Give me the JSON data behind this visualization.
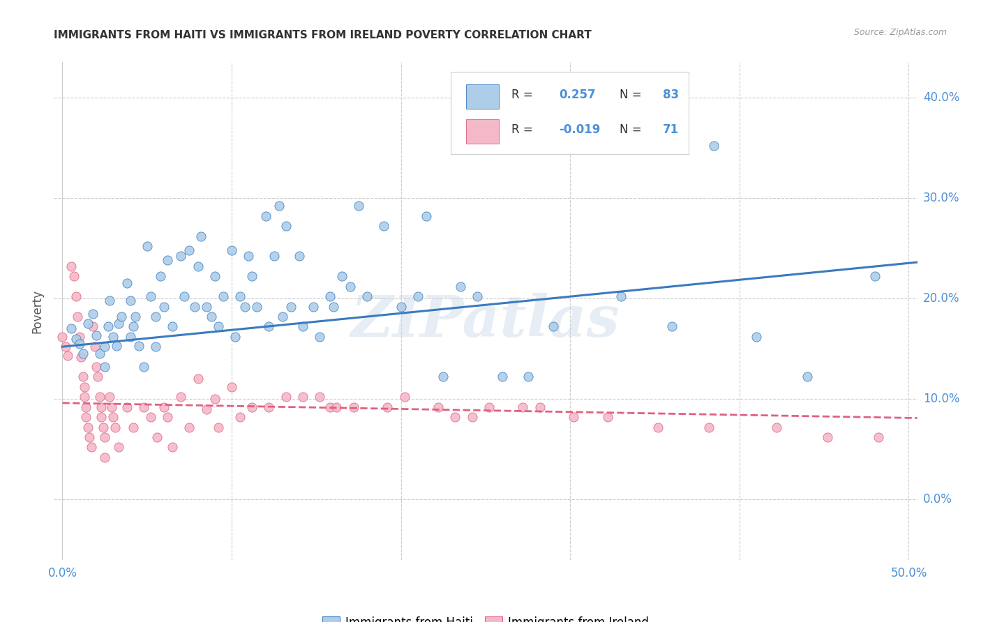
{
  "title": "IMMIGRANTS FROM HAITI VS IMMIGRANTS FROM IRELAND POVERTY CORRELATION CHART",
  "source": "Source: ZipAtlas.com",
  "ylabel": "Poverty",
  "xlim": [
    -0.005,
    0.505
  ],
  "ylim": [
    -0.06,
    0.435
  ],
  "xticks": [
    0.0,
    0.1,
    0.2,
    0.3,
    0.4,
    0.5
  ],
  "yticks": [
    0.0,
    0.1,
    0.2,
    0.3,
    0.4
  ],
  "xticklabels": [
    "0.0%",
    "",
    "",
    "",
    "",
    "50.0%"
  ],
  "yticklabels_right": [
    "0.0%",
    "10.0%",
    "20.0%",
    "30.0%",
    "40.0%"
  ],
  "haiti_color": "#aecde8",
  "ireland_color": "#f4b8c8",
  "haiti_line_color": "#3a7bbf",
  "ireland_line_color": "#e06080",
  "haiti_R": "0.257",
  "haiti_N": "83",
  "ireland_R": "-0.019",
  "ireland_N": "71",
  "haiti_line_x": [
    0.0,
    0.505
  ],
  "haiti_line_y": [
    0.152,
    0.236
  ],
  "ireland_line_x": [
    0.0,
    0.505
  ],
  "ireland_line_y": [
    0.096,
    0.081
  ],
  "haiti_x": [
    0.005,
    0.008,
    0.01,
    0.012,
    0.015,
    0.018,
    0.02,
    0.022,
    0.025,
    0.025,
    0.027,
    0.028,
    0.03,
    0.032,
    0.033,
    0.035,
    0.038,
    0.04,
    0.04,
    0.042,
    0.043,
    0.045,
    0.048,
    0.05,
    0.052,
    0.055,
    0.055,
    0.058,
    0.06,
    0.062,
    0.065,
    0.07,
    0.072,
    0.075,
    0.078,
    0.08,
    0.082,
    0.085,
    0.088,
    0.09,
    0.092,
    0.095,
    0.1,
    0.102,
    0.105,
    0.108,
    0.11,
    0.112,
    0.115,
    0.12,
    0.122,
    0.125,
    0.128,
    0.13,
    0.132,
    0.135,
    0.14,
    0.142,
    0.148,
    0.152,
    0.158,
    0.16,
    0.165,
    0.17,
    0.175,
    0.18,
    0.19,
    0.2,
    0.21,
    0.215,
    0.225,
    0.235,
    0.245,
    0.26,
    0.275,
    0.29,
    0.31,
    0.33,
    0.36,
    0.385,
    0.41,
    0.44,
    0.48
  ],
  "haiti_y": [
    0.17,
    0.16,
    0.155,
    0.145,
    0.175,
    0.185,
    0.163,
    0.145,
    0.132,
    0.152,
    0.172,
    0.198,
    0.162,
    0.153,
    0.175,
    0.182,
    0.215,
    0.198,
    0.162,
    0.172,
    0.182,
    0.153,
    0.132,
    0.252,
    0.202,
    0.182,
    0.152,
    0.222,
    0.192,
    0.238,
    0.172,
    0.242,
    0.202,
    0.248,
    0.192,
    0.232,
    0.262,
    0.192,
    0.182,
    0.222,
    0.172,
    0.202,
    0.248,
    0.162,
    0.202,
    0.192,
    0.242,
    0.222,
    0.192,
    0.282,
    0.172,
    0.242,
    0.292,
    0.182,
    0.272,
    0.192,
    0.242,
    0.172,
    0.192,
    0.162,
    0.202,
    0.192,
    0.222,
    0.212,
    0.292,
    0.202,
    0.272,
    0.192,
    0.202,
    0.282,
    0.122,
    0.212,
    0.202,
    0.122,
    0.122,
    0.172,
    0.362,
    0.202,
    0.172,
    0.352,
    0.162,
    0.122,
    0.222
  ],
  "ireland_x": [
    0.0,
    0.002,
    0.003,
    0.005,
    0.007,
    0.008,
    0.009,
    0.01,
    0.011,
    0.012,
    0.013,
    0.013,
    0.014,
    0.014,
    0.015,
    0.016,
    0.017,
    0.018,
    0.019,
    0.02,
    0.021,
    0.022,
    0.023,
    0.023,
    0.024,
    0.025,
    0.025,
    0.028,
    0.029,
    0.03,
    0.031,
    0.033,
    0.038,
    0.042,
    0.048,
    0.052,
    0.056,
    0.06,
    0.062,
    0.065,
    0.07,
    0.075,
    0.08,
    0.085,
    0.09,
    0.092,
    0.1,
    0.105,
    0.112,
    0.122,
    0.132,
    0.142,
    0.152,
    0.158,
    0.162,
    0.172,
    0.192,
    0.202,
    0.222,
    0.232,
    0.242,
    0.252,
    0.272,
    0.282,
    0.302,
    0.322,
    0.352,
    0.382,
    0.422,
    0.452,
    0.482
  ],
  "ireland_y": [
    0.162,
    0.152,
    0.143,
    0.232,
    0.222,
    0.202,
    0.182,
    0.162,
    0.142,
    0.122,
    0.112,
    0.102,
    0.092,
    0.082,
    0.072,
    0.062,
    0.052,
    0.172,
    0.152,
    0.132,
    0.122,
    0.102,
    0.092,
    0.082,
    0.072,
    0.062,
    0.042,
    0.102,
    0.092,
    0.082,
    0.072,
    0.052,
    0.092,
    0.072,
    0.092,
    0.082,
    0.062,
    0.092,
    0.082,
    0.052,
    0.102,
    0.072,
    0.12,
    0.09,
    0.1,
    0.072,
    0.112,
    0.082,
    0.092,
    0.092,
    0.102,
    0.102,
    0.102,
    0.092,
    0.092,
    0.092,
    0.092,
    0.102,
    0.092,
    0.082,
    0.082,
    0.092,
    0.092,
    0.092,
    0.082,
    0.082,
    0.072,
    0.072,
    0.072,
    0.062,
    0.062
  ],
  "watermark": "ZIPatlas",
  "background_color": "#ffffff",
  "grid_color": "#cccccc",
  "title_fontsize": 11,
  "axis_label_color": "#4a90d9",
  "legend_label1": "Immigrants from Haiti",
  "legend_label2": "Immigrants from Ireland"
}
